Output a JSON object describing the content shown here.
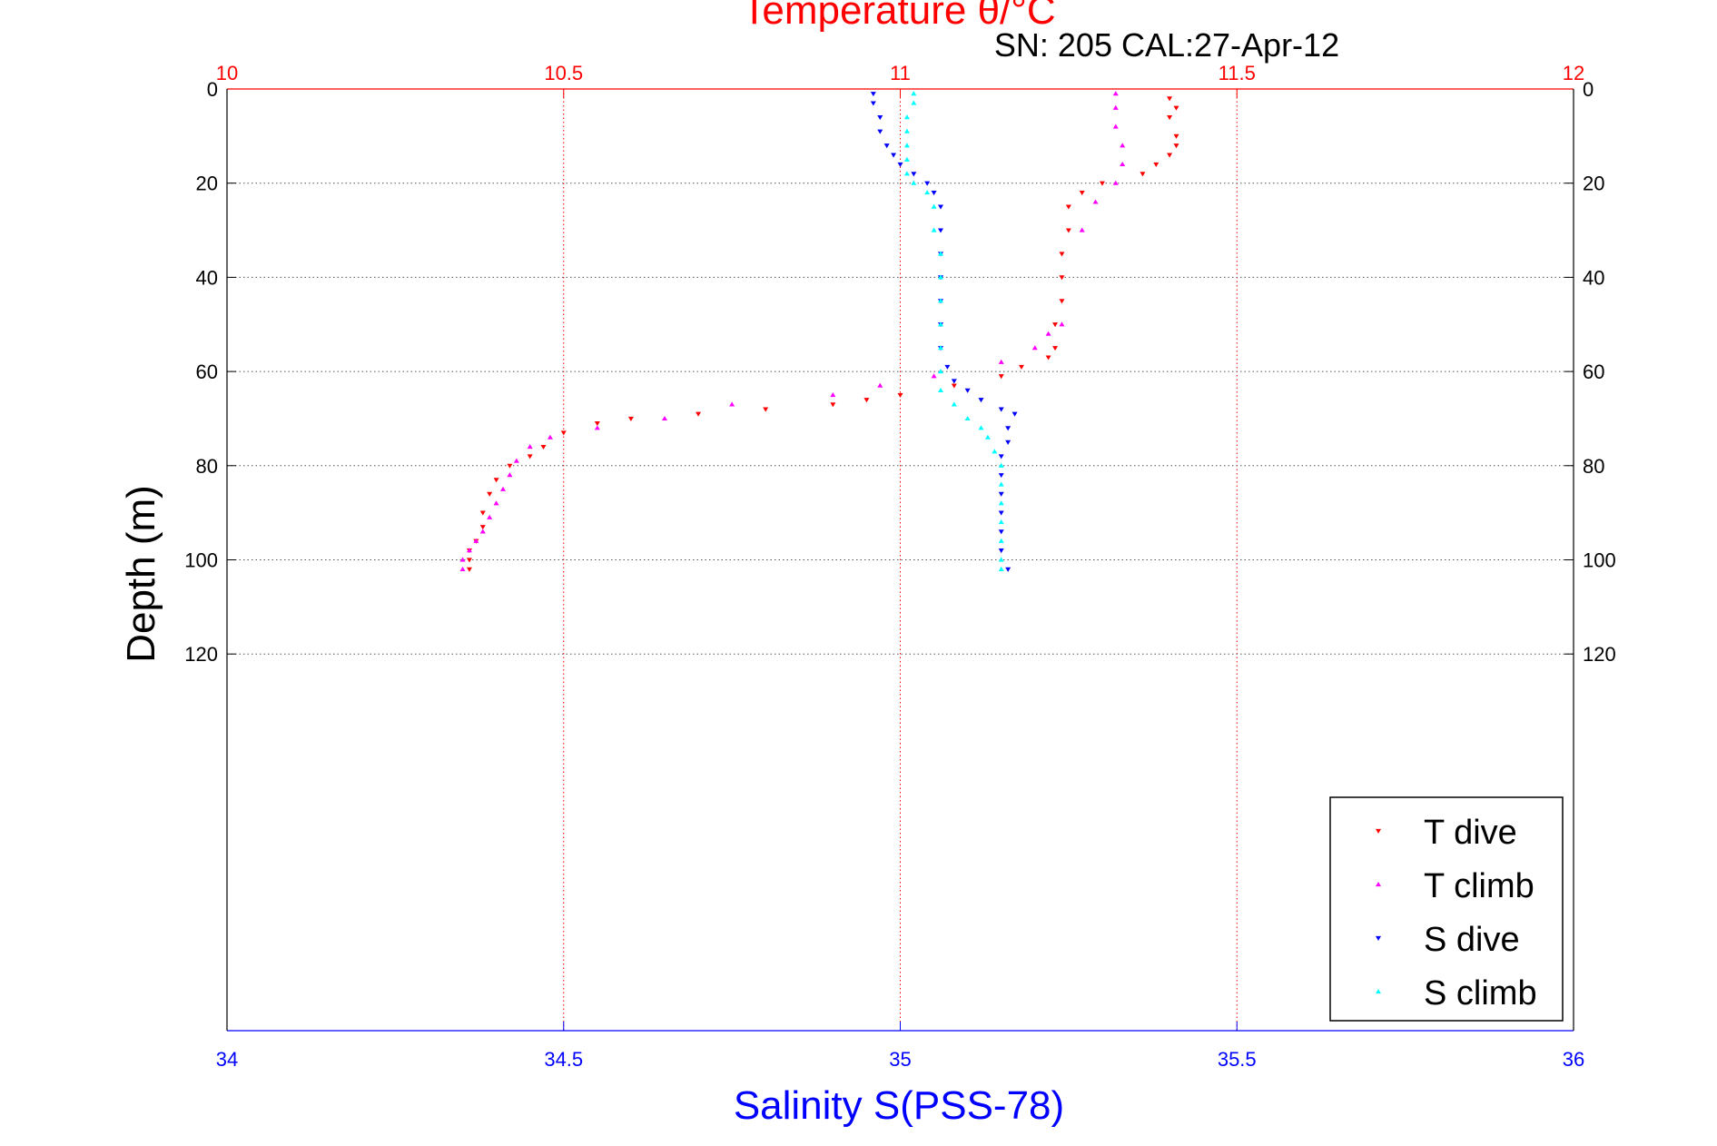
{
  "chart_data": {
    "type": "scatter",
    "title": "Temperature θ/°C",
    "subtitle": "SN: 205  CAL:27-Apr-12",
    "ylabel": "Depth (m)",
    "xlabel_bottom": "Salinity S(PSS-78)",
    "xlabel_top": "Temperature θ/°C",
    "x_bottom_lim": [
      34,
      36
    ],
    "x_bottom_ticks": [
      "34",
      "34.5",
      "35",
      "35.5",
      "36"
    ],
    "x_top_lim": [
      10,
      12
    ],
    "x_top_ticks": [
      "10",
      "10.5",
      "11",
      "11.5",
      "12"
    ],
    "ylim": [
      0,
      200
    ],
    "y_reversed": true,
    "y_ticks": [
      "0",
      "20",
      "40",
      "60",
      "80",
      "100",
      "120"
    ],
    "grid": true,
    "legend_position": "bottom-right",
    "colors": {
      "temp_axis": "#ff0000",
      "sal_axis": "#0000ff",
      "grid": "#555555"
    },
    "series": [
      {
        "name": "T dive",
        "axis": "temperature",
        "color": "#ff0000",
        "marker": "triangle-down",
        "points": [
          [
            11.4,
            2
          ],
          [
            11.41,
            4
          ],
          [
            11.4,
            6
          ],
          [
            11.41,
            10
          ],
          [
            11.41,
            12
          ],
          [
            11.4,
            14
          ],
          [
            11.38,
            16
          ],
          [
            11.36,
            18
          ],
          [
            11.3,
            20
          ],
          [
            11.27,
            22
          ],
          [
            11.25,
            25
          ],
          [
            11.25,
            30
          ],
          [
            11.24,
            35
          ],
          [
            11.24,
            40
          ],
          [
            11.24,
            45
          ],
          [
            11.23,
            50
          ],
          [
            11.23,
            55
          ],
          [
            11.22,
            57
          ],
          [
            11.18,
            59
          ],
          [
            11.15,
            61
          ],
          [
            11.08,
            63
          ],
          [
            11.0,
            65
          ],
          [
            10.95,
            66
          ],
          [
            10.9,
            67
          ],
          [
            10.8,
            68
          ],
          [
            10.7,
            69
          ],
          [
            10.6,
            70
          ],
          [
            10.55,
            71
          ],
          [
            10.5,
            73
          ],
          [
            10.47,
            76
          ],
          [
            10.45,
            78
          ],
          [
            10.42,
            80
          ],
          [
            10.4,
            83
          ],
          [
            10.39,
            86
          ],
          [
            10.38,
            90
          ],
          [
            10.38,
            93
          ],
          [
            10.37,
            96
          ],
          [
            10.36,
            98
          ],
          [
            10.36,
            100
          ],
          [
            10.36,
            102
          ]
        ]
      },
      {
        "name": "T climb",
        "axis": "temperature",
        "color": "#ff00ff",
        "marker": "triangle-up",
        "points": [
          [
            10.35,
            102
          ],
          [
            10.35,
            100
          ],
          [
            10.36,
            98
          ],
          [
            10.37,
            96
          ],
          [
            10.38,
            94
          ],
          [
            10.39,
            91
          ],
          [
            10.4,
            88
          ],
          [
            10.41,
            85
          ],
          [
            10.42,
            82
          ],
          [
            10.43,
            79
          ],
          [
            10.45,
            76
          ],
          [
            10.48,
            74
          ],
          [
            10.55,
            72
          ],
          [
            10.65,
            70
          ],
          [
            10.75,
            67
          ],
          [
            10.9,
            65
          ],
          [
            10.97,
            63
          ],
          [
            11.05,
            61
          ],
          [
            11.15,
            58
          ],
          [
            11.2,
            55
          ],
          [
            11.22,
            52
          ],
          [
            11.24,
            50
          ],
          [
            11.27,
            30
          ],
          [
            11.29,
            24
          ],
          [
            11.32,
            20
          ],
          [
            11.33,
            16
          ],
          [
            11.33,
            12
          ],
          [
            11.32,
            8
          ],
          [
            11.32,
            4
          ],
          [
            11.32,
            1
          ]
        ]
      },
      {
        "name": "S dive",
        "axis": "salinity",
        "color": "#0000ff",
        "marker": "triangle-down",
        "points": [
          [
            34.96,
            1
          ],
          [
            34.96,
            3
          ],
          [
            34.97,
            6
          ],
          [
            34.97,
            9
          ],
          [
            34.98,
            12
          ],
          [
            34.99,
            14
          ],
          [
            35.0,
            16
          ],
          [
            35.02,
            18
          ],
          [
            35.04,
            20
          ],
          [
            35.05,
            22
          ],
          [
            35.06,
            25
          ],
          [
            35.06,
            30
          ],
          [
            35.06,
            35
          ],
          [
            35.06,
            40
          ],
          [
            35.06,
            45
          ],
          [
            35.06,
            50
          ],
          [
            35.06,
            55
          ],
          [
            35.07,
            59
          ],
          [
            35.08,
            62
          ],
          [
            35.1,
            64
          ],
          [
            35.12,
            66
          ],
          [
            35.15,
            68
          ],
          [
            35.17,
            69
          ],
          [
            35.16,
            72
          ],
          [
            35.16,
            75
          ],
          [
            35.15,
            78
          ],
          [
            35.15,
            82
          ],
          [
            35.15,
            86
          ],
          [
            35.15,
            90
          ],
          [
            35.15,
            94
          ],
          [
            35.15,
            98
          ],
          [
            35.16,
            102
          ]
        ]
      },
      {
        "name": "S climb",
        "axis": "salinity",
        "color": "#00ffff",
        "marker": "triangle-up",
        "points": [
          [
            35.15,
            102
          ],
          [
            35.15,
            100
          ],
          [
            35.15,
            96
          ],
          [
            35.15,
            92
          ],
          [
            35.15,
            88
          ],
          [
            35.15,
            84
          ],
          [
            35.15,
            80
          ],
          [
            35.14,
            77
          ],
          [
            35.13,
            74
          ],
          [
            35.12,
            72
          ],
          [
            35.1,
            70
          ],
          [
            35.08,
            67
          ],
          [
            35.06,
            64
          ],
          [
            35.06,
            60
          ],
          [
            35.06,
            55
          ],
          [
            35.06,
            50
          ],
          [
            35.06,
            45
          ],
          [
            35.06,
            40
          ],
          [
            35.06,
            35
          ],
          [
            35.05,
            30
          ],
          [
            35.05,
            25
          ],
          [
            35.04,
            22
          ],
          [
            35.02,
            20
          ],
          [
            35.01,
            18
          ],
          [
            35.01,
            15
          ],
          [
            35.01,
            12
          ],
          [
            35.01,
            9
          ],
          [
            35.01,
            6
          ],
          [
            35.02,
            3
          ],
          [
            35.02,
            1
          ]
        ]
      }
    ]
  }
}
